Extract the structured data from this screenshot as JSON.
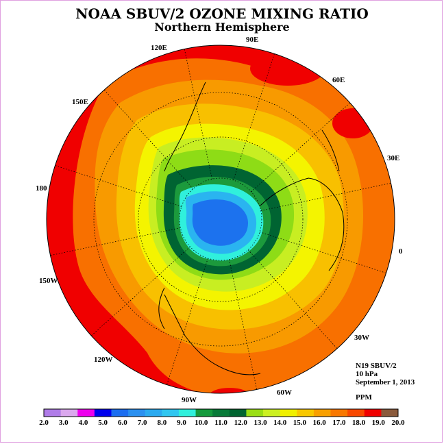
{
  "title": "NOAA SBUV/2 OZONE MIXING RATIO",
  "subtitle": "Northern Hemisphere",
  "longitude_labels": [
    "120E",
    "90E",
    "60E",
    "150E",
    "30E",
    "180",
    "0",
    "150W",
    "30W",
    "120W",
    "60W",
    "90W"
  ],
  "info": {
    "satellite": "N19 SBUV/2",
    "pressure": "10 hPa",
    "date": "September 1, 2013",
    "units": "PPM"
  },
  "colorbar": {
    "ticks": [
      "2.0",
      "3.0",
      "4.0",
      "5.0",
      "6.0",
      "7.0",
      "8.0",
      "9.0",
      "10.0",
      "11.0",
      "12.0",
      "13.0",
      "14.0",
      "15.0",
      "16.0",
      "17.0",
      "18.0",
      "19.0",
      "20.0"
    ],
    "colors": [
      "#b07ce8",
      "#dba8ee",
      "#ee00ee",
      "#0000ee",
      "#1c6ef0",
      "#2a90f0",
      "#2aaaf0",
      "#30c6f0",
      "#30f0dc",
      "#149a3c",
      "#087a38",
      "#006430",
      "#9ade14",
      "#ccf022",
      "#f0f000",
      "#f8c800",
      "#f8a000",
      "#f87800",
      "#f84800",
      "#f00000",
      "#8a5a3c"
    ]
  },
  "map_colors": {
    "outer_red": "#f00000",
    "orange_dark": "#f87000",
    "orange": "#f89a00",
    "amber": "#f8c000",
    "yellow": "#f4f400",
    "lime": "#c8ee22",
    "yellow_green": "#8edc16",
    "dark_green": "#006432",
    "green": "#1c9a3c",
    "cyan": "#30f0dc",
    "light_blue": "#2ab4f0",
    "blue": "#1c72ee",
    "coast": "#000000"
  }
}
